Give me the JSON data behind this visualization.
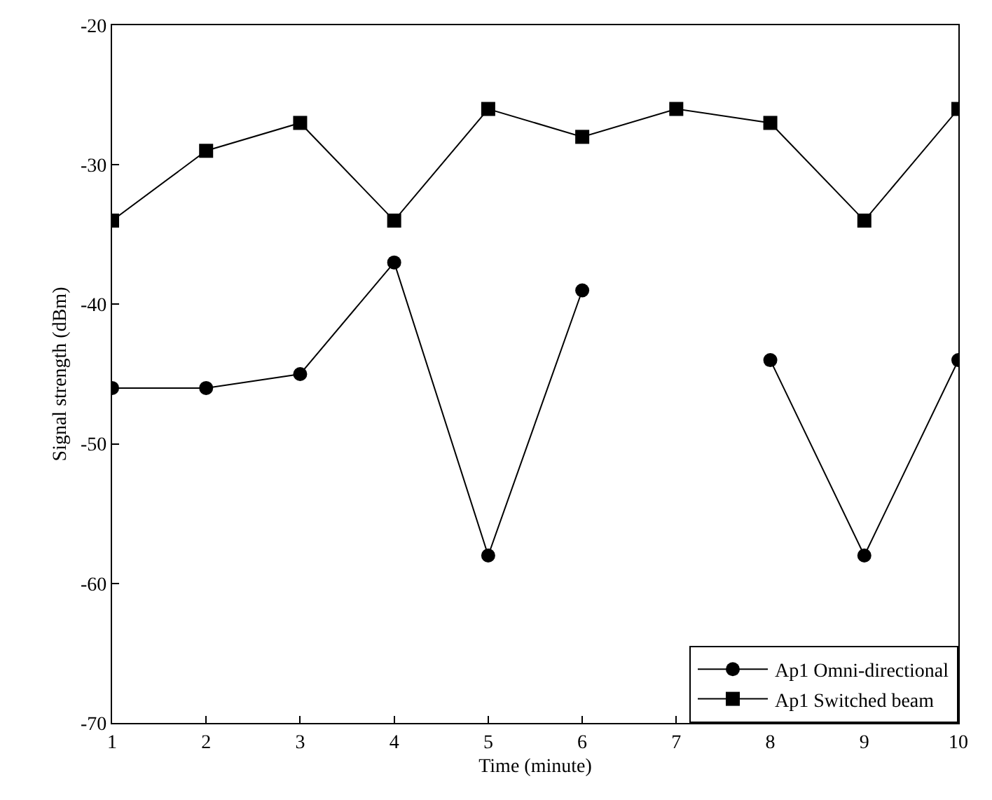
{
  "chart_data": {
    "type": "line",
    "xlabel": "Time (minute)",
    "ylabel": "Signal strength (dBm)",
    "x": [
      1,
      2,
      3,
      4,
      5,
      6,
      7,
      8,
      9,
      10
    ],
    "series": [
      {
        "name": "Ap1 Omni-directional",
        "color": "#000000",
        "marker": "circle",
        "values": [
          -46,
          -46,
          -45,
          -37,
          -58,
          -39,
          null,
          -44,
          -58,
          -44
        ]
      },
      {
        "name": "Ap1 Switched beam",
        "color": "#000000",
        "marker": "square",
        "values": [
          -34,
          -29,
          -27,
          -34,
          -26,
          -28,
          -26,
          -27,
          -34,
          -26
        ]
      }
    ],
    "xlim": [
      1,
      10
    ],
    "xticks": [
      1,
      2,
      3,
      4,
      5,
      6,
      7,
      8,
      9,
      10
    ],
    "ylim": [
      -70,
      -20
    ],
    "yticks": [
      -70,
      -60,
      -50,
      -40,
      -30,
      -20
    ],
    "legend": "bottom right",
    "line_style": "solid"
  }
}
